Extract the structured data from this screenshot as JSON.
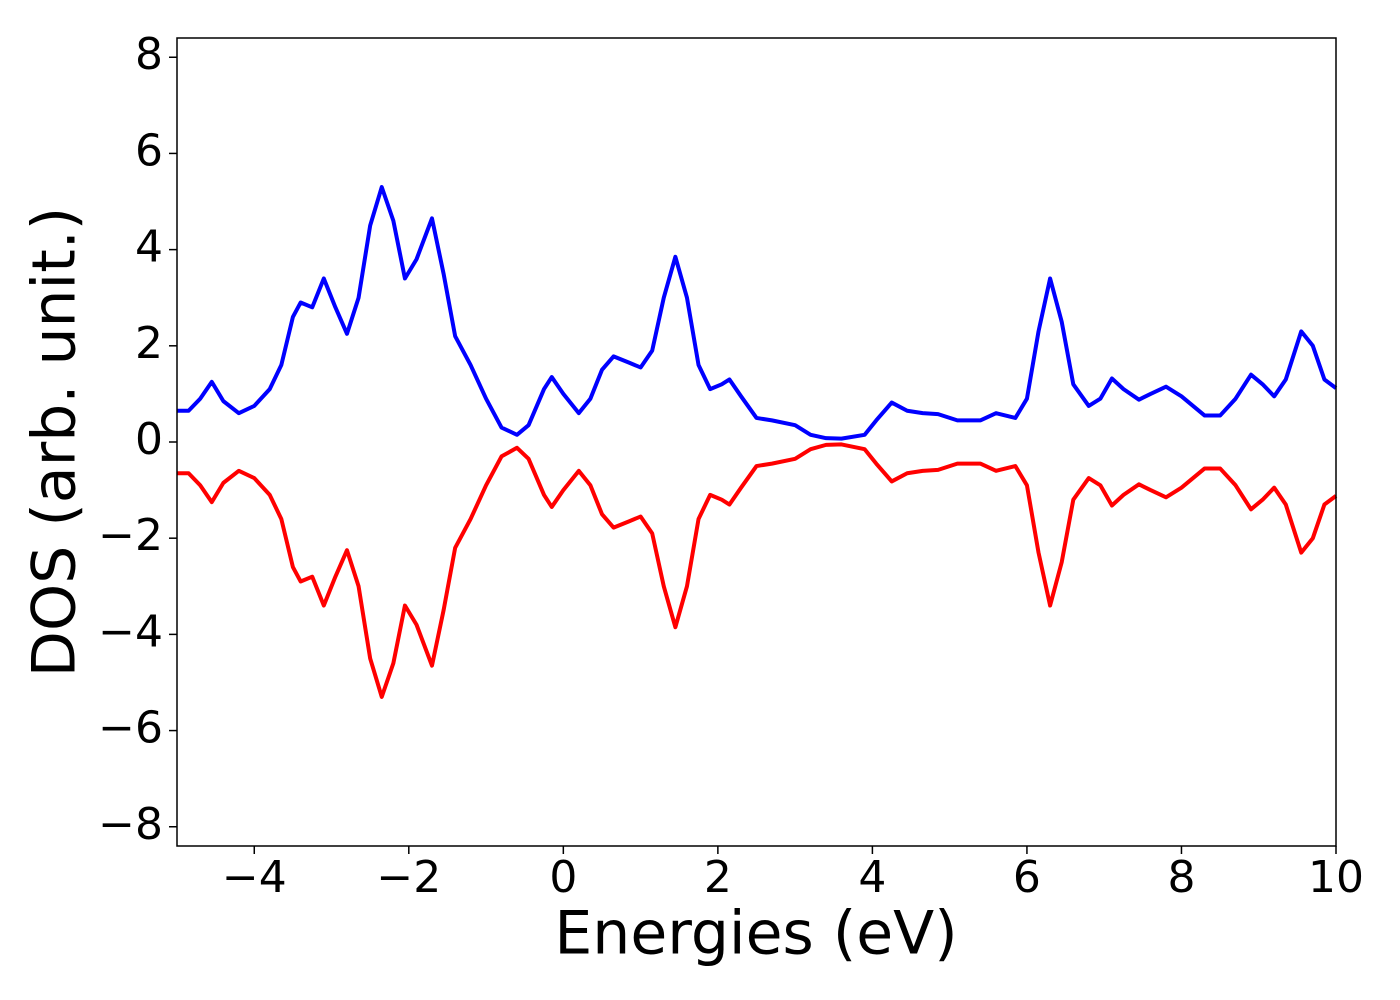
{
  "chart_data": {
    "type": "line",
    "xlabel": "Energies (eV)",
    "ylabel": "DOS (arb. unit.)",
    "x": [
      -5.0,
      -4.85,
      -4.7,
      -4.55,
      -4.4,
      -4.2,
      -4.0,
      -3.8,
      -3.65,
      -3.5,
      -3.4,
      -3.25,
      -3.1,
      -2.95,
      -2.8,
      -2.65,
      -2.5,
      -2.35,
      -2.2,
      -2.05,
      -1.9,
      -1.7,
      -1.55,
      -1.4,
      -1.2,
      -1.0,
      -0.8,
      -0.6,
      -0.45,
      -0.25,
      -0.15,
      0.0,
      0.2,
      0.35,
      0.5,
      0.65,
      0.85,
      1.0,
      1.15,
      1.3,
      1.45,
      1.6,
      1.75,
      1.9,
      2.05,
      2.15,
      2.3,
      2.5,
      2.7,
      3.0,
      3.2,
      3.4,
      3.6,
      3.9,
      4.05,
      4.25,
      4.45,
      4.65,
      4.85,
      5.1,
      5.4,
      5.6,
      5.85,
      6.0,
      6.15,
      6.3,
      6.45,
      6.6,
      6.8,
      6.95,
      7.1,
      7.25,
      7.45,
      7.6,
      7.8,
      8.0,
      8.3,
      8.5,
      8.7,
      8.9,
      9.05,
      9.2,
      9.35,
      9.55,
      9.7,
      9.85,
      10.0
    ],
    "series": [
      {
        "color": "#0000ff",
        "values": [
          0.65,
          0.65,
          0.9,
          1.25,
          0.85,
          0.6,
          0.75,
          1.1,
          1.6,
          2.6,
          2.9,
          2.8,
          3.4,
          2.8,
          2.25,
          3.0,
          4.5,
          5.3,
          4.6,
          3.4,
          3.8,
          4.65,
          3.5,
          2.2,
          1.6,
          0.9,
          0.3,
          0.15,
          0.35,
          1.1,
          1.35,
          1.0,
          0.6,
          0.9,
          1.5,
          1.78,
          1.65,
          1.55,
          1.9,
          3.0,
          3.85,
          3.0,
          1.6,
          1.1,
          1.2,
          1.3,
          0.95,
          0.5,
          0.45,
          0.35,
          0.15,
          0.08,
          0.07,
          0.15,
          0.45,
          0.82,
          0.65,
          0.6,
          0.58,
          0.45,
          0.45,
          0.6,
          0.5,
          0.9,
          2.3,
          3.4,
          2.5,
          1.2,
          0.75,
          0.9,
          1.32,
          1.1,
          0.88,
          1.0,
          1.15,
          0.95,
          0.55,
          0.55,
          0.9,
          1.4,
          1.2,
          0.95,
          1.3,
          2.3,
          2.0,
          1.3,
          1.12
        ]
      },
      {
        "color": "#ff0000",
        "values": [
          -0.65,
          -0.65,
          -0.9,
          -1.25,
          -0.85,
          -0.6,
          -0.75,
          -1.1,
          -1.6,
          -2.6,
          -2.9,
          -2.8,
          -3.4,
          -2.8,
          -2.25,
          -3.0,
          -4.5,
          -5.3,
          -4.6,
          -3.4,
          -3.8,
          -4.65,
          -3.5,
          -2.2,
          -1.6,
          -0.9,
          -0.3,
          -0.12,
          -0.35,
          -1.1,
          -1.35,
          -1.0,
          -0.6,
          -0.9,
          -1.5,
          -1.78,
          -1.65,
          -1.55,
          -1.9,
          -3.0,
          -3.85,
          -3.0,
          -1.6,
          -1.1,
          -1.2,
          -1.3,
          -0.95,
          -0.5,
          -0.45,
          -0.35,
          -0.15,
          -0.06,
          -0.05,
          -0.15,
          -0.45,
          -0.82,
          -0.65,
          -0.6,
          -0.58,
          -0.45,
          -0.45,
          -0.6,
          -0.5,
          -0.9,
          -2.3,
          -3.4,
          -2.5,
          -1.2,
          -0.75,
          -0.9,
          -1.32,
          -1.1,
          -0.88,
          -1.0,
          -1.15,
          -0.95,
          -0.55,
          -0.55,
          -0.9,
          -1.4,
          -1.2,
          -0.95,
          -1.3,
          -2.3,
          -2.0,
          -1.3,
          -1.12
        ]
      }
    ],
    "xlim": [
      -5,
      10
    ],
    "xticks": [
      {
        "value": -4,
        "label": "−4"
      },
      {
        "value": -2,
        "label": "−2"
      },
      0,
      2,
      4,
      6,
      8,
      10
    ],
    "ylim": [
      -8.4,
      8.4
    ],
    "yticks": [
      {
        "value": -8,
        "label": "−8"
      },
      {
        "value": -6,
        "label": "−6"
      },
      {
        "value": -4,
        "label": "−4"
      },
      {
        "value": -2,
        "label": "−2"
      },
      0,
      2,
      4,
      6,
      8
    ]
  }
}
